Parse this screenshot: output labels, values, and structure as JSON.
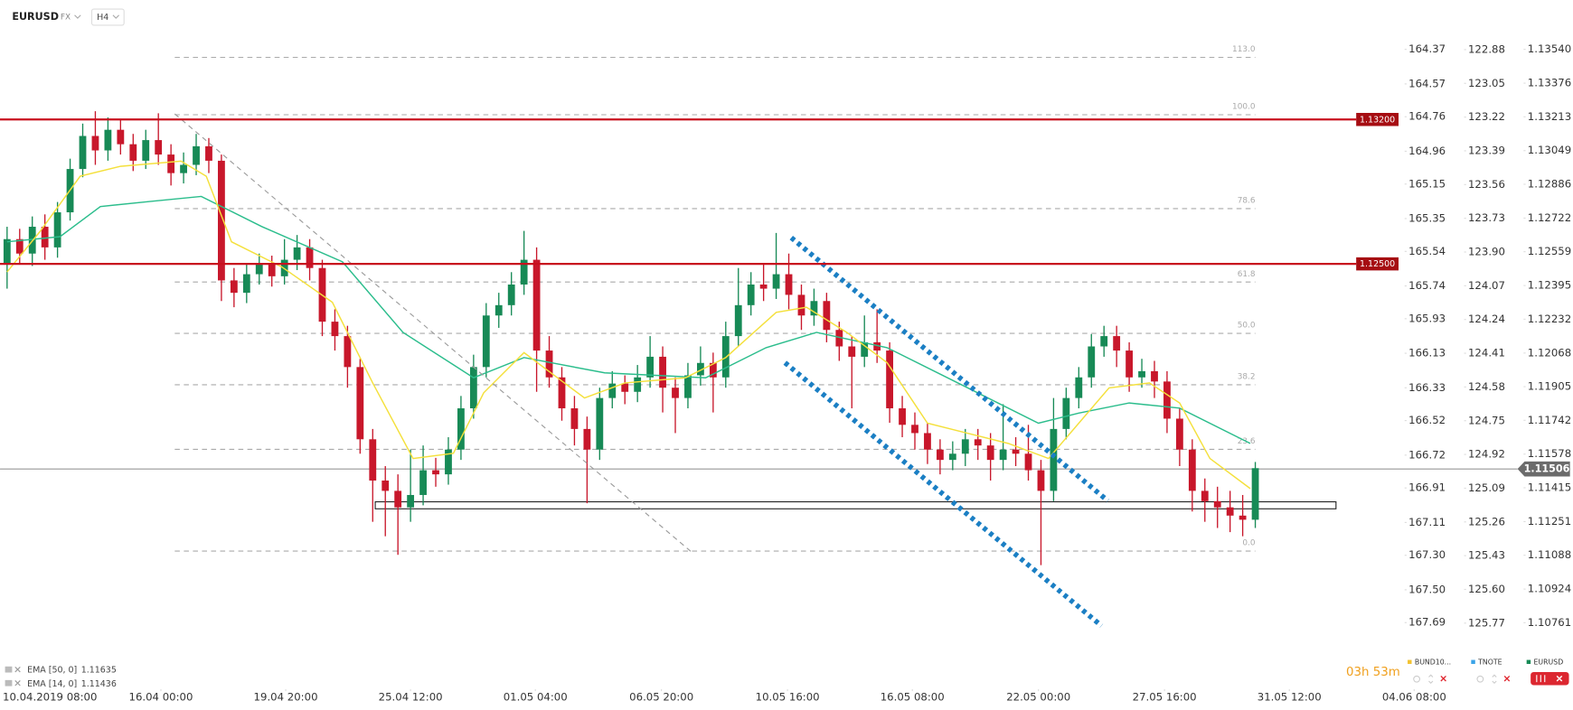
{
  "header": {
    "symbol": "EURUSD",
    "market": "FX",
    "timeframe": "H4"
  },
  "chart_data": {
    "type": "candlestick",
    "open": [
      1.125,
      1.1262,
      1.1255,
      1.1268,
      1.1258,
      1.1275,
      1.1296,
      1.1312,
      1.1305,
      1.1315,
      1.1308,
      1.13,
      1.131,
      1.1303,
      1.1294,
      1.1298,
      1.1307,
      1.13,
      1.1242,
      1.1236,
      1.1245,
      1.125,
      1.1244,
      1.1252,
      1.1258,
      1.1248,
      1.1222,
      1.1215,
      1.12,
      1.1165,
      1.1145,
      1.114,
      1.1132,
      1.1138,
      1.115,
      1.1148,
      1.116,
      1.118,
      1.12,
      1.1225,
      1.123,
      1.124,
      1.1252,
      1.1208,
      1.1195,
      1.118,
      1.117,
      1.116,
      1.1185,
      1.1192,
      1.1188,
      1.1195,
      1.1205,
      1.119,
      1.1185,
      1.1196,
      1.1202,
      1.1195,
      1.1215,
      1.123,
      1.124,
      1.1238,
      1.1245,
      1.1235,
      1.1225,
      1.1232,
      1.1218,
      1.121,
      1.1205,
      1.1212,
      1.1208,
      1.118,
      1.1172,
      1.1168,
      1.116,
      1.1155,
      1.1158,
      1.1165,
      1.1162,
      1.1155,
      1.116,
      1.1158,
      1.115,
      1.114,
      1.117,
      1.1185,
      1.1195,
      1.121,
      1.1215,
      1.1208,
      1.1195,
      1.1198,
      1.1193,
      1.1175,
      1.116,
      1.114,
      1.1135,
      1.1132,
      1.1128,
      1.1126
    ],
    "high": [
      1.1268,
      1.1267,
      1.1273,
      1.1274,
      1.128,
      1.1301,
      1.1318,
      1.1324,
      1.1321,
      1.132,
      1.1313,
      1.1315,
      1.1323,
      1.1308,
      1.1304,
      1.1313,
      1.1311,
      1.1303,
      1.1248,
      1.125,
      1.1255,
      1.1254,
      1.1262,
      1.1264,
      1.1262,
      1.1252,
      1.1228,
      1.122,
      1.1204,
      1.117,
      1.1152,
      1.1148,
      1.116,
      1.1162,
      1.1156,
      1.1166,
      1.1186,
      1.1206,
      1.1231,
      1.1236,
      1.1246,
      1.1266,
      1.1258,
      1.1215,
      1.12,
      1.1186,
      1.1176,
      1.119,
      1.1198,
      1.1196,
      1.1201,
      1.1215,
      1.121,
      1.1195,
      1.1202,
      1.121,
      1.1207,
      1.1222,
      1.1248,
      1.1246,
      1.125,
      1.1265,
      1.1255,
      1.124,
      1.1238,
      1.1236,
      1.1222,
      1.1215,
      1.1225,
      1.1228,
      1.1212,
      1.1186,
      1.1178,
      1.1173,
      1.1165,
      1.1164,
      1.117,
      1.117,
      1.1168,
      1.1182,
      1.1166,
      1.1172,
      1.1155,
      1.1185,
      1.119,
      1.12,
      1.1216,
      1.122,
      1.122,
      1.1212,
      1.1204,
      1.1203,
      1.1198,
      1.118,
      1.1165,
      1.1146,
      1.1142,
      1.114,
      1.1138,
      1.1154
    ],
    "low": [
      1.1238,
      1.125,
      1.1249,
      1.1252,
      1.1253,
      1.1271,
      1.1292,
      1.1298,
      1.13,
      1.1303,
      1.1295,
      1.1296,
      1.1298,
      1.1288,
      1.1289,
      1.1293,
      1.1294,
      1.1232,
      1.1229,
      1.1231,
      1.124,
      1.1239,
      1.124,
      1.1247,
      1.1242,
      1.1215,
      1.1208,
      1.119,
      1.1158,
      1.1125,
      1.1118,
      1.1109,
      1.1125,
      1.1133,
      1.1142,
      1.1143,
      1.1155,
      1.1175,
      1.1195,
      1.1219,
      1.1225,
      1.1235,
      1.1188,
      1.119,
      1.1174,
      1.1162,
      1.1134,
      1.1155,
      1.118,
      1.1182,
      1.1183,
      1.119,
      1.1178,
      1.1168,
      1.118,
      1.1191,
      1.1178,
      1.119,
      1.121,
      1.1225,
      1.1232,
      1.1233,
      1.1228,
      1.1218,
      1.122,
      1.1212,
      1.1203,
      1.118,
      1.12,
      1.1202,
      1.1173,
      1.1166,
      1.116,
      1.1153,
      1.1148,
      1.115,
      1.1152,
      1.1155,
      1.1145,
      1.115,
      1.1152,
      1.1145,
      1.1104,
      1.1135,
      1.1165,
      1.118,
      1.119,
      1.1205,
      1.12,
      1.1188,
      1.119,
      1.1185,
      1.1168,
      1.1152,
      1.113,
      1.1125,
      1.1122,
      1.112,
      1.1118,
      1.1122
    ],
    "close": [
      1.1262,
      1.1255,
      1.1268,
      1.1258,
      1.1275,
      1.1296,
      1.1312,
      1.1305,
      1.1315,
      1.1308,
      1.13,
      1.131,
      1.1303,
      1.1294,
      1.1298,
      1.1307,
      1.13,
      1.1242,
      1.1236,
      1.1245,
      1.125,
      1.1244,
      1.1252,
      1.1258,
      1.1248,
      1.1222,
      1.1215,
      1.12,
      1.1165,
      1.1145,
      1.114,
      1.1132,
      1.1138,
      1.115,
      1.1148,
      1.116,
      1.118,
      1.12,
      1.1225,
      1.123,
      1.124,
      1.1252,
      1.1208,
      1.1195,
      1.118,
      1.117,
      1.116,
      1.1185,
      1.1192,
      1.1188,
      1.1195,
      1.1205,
      1.119,
      1.1185,
      1.1196,
      1.1202,
      1.1195,
      1.1215,
      1.123,
      1.124,
      1.1238,
      1.1245,
      1.1235,
      1.1225,
      1.1232,
      1.1218,
      1.121,
      1.1205,
      1.1212,
      1.1208,
      1.118,
      1.1172,
      1.1168,
      1.116,
      1.1155,
      1.1158,
      1.1165,
      1.1162,
      1.1155,
      1.116,
      1.1158,
      1.115,
      1.114,
      1.117,
      1.1185,
      1.1195,
      1.121,
      1.1215,
      1.1208,
      1.1195,
      1.1198,
      1.1193,
      1.1175,
      1.116,
      1.114,
      1.1135,
      1.1132,
      1.1128,
      1.1126,
      1.1151
    ],
    "up_color": "#178a56",
    "down_color": "#c8172b",
    "xlim": [
      -0.56,
      114.6
    ],
    "xticks": [
      {
        "value": 3.4,
        "label": "10.04.2019  08:00"
      },
      {
        "value": 12.2,
        "label": "16.04  00:00"
      },
      {
        "value": 22.1,
        "label": "19.04  20:00"
      },
      {
        "value": 32,
        "label": "25.04  12:00"
      },
      {
        "value": 41.9,
        "label": "01.05  04:00"
      },
      {
        "value": 51.9,
        "label": "06.05  20:00"
      },
      {
        "value": 61.9,
        "label": "10.05  16:00"
      },
      {
        "value": 71.8,
        "label": "16.05  08:00"
      },
      {
        "value": 81.8,
        "label": "22.05  00:00"
      },
      {
        "value": 91.8,
        "label": "27.05  16:00"
      },
      {
        "value": 101.7,
        "label": "31.05  12:00"
      },
      {
        "value": 111.6,
        "label": "04.06  08:00"
      }
    ],
    "ylim": [
      1.10605,
      1.13779
    ],
    "yticks": [
      {
        "value": 1.1354,
        "label": "1.13540"
      },
      1.13376,
      1.13213,
      1.13049,
      1.12886,
      1.12722,
      1.12559,
      1.12395,
      1.12232,
      1.12068,
      1.11905,
      1.11742,
      1.11578,
      1.11415,
      1.11251,
      1.11088,
      1.10924,
      1.10761
    ],
    "y2lim": [
      164.084,
      167.877
    ],
    "y2_inverted": true,
    "y2ticks": [
      164.37,
      164.57,
      164.76,
      164.96,
      165.15,
      165.35,
      165.54,
      165.74,
      165.93,
      166.13,
      166.33,
      166.52,
      166.72,
      166.91,
      167.11,
      {
        "value": 167.3,
        "label": "167.30"
      },
      {
        "value": 167.5,
        "label": "167.50"
      },
      167.69
    ],
    "y3lim": [
      122.63,
      125.93
    ],
    "y3_inverted": true,
    "y3ticks": [
      122.88,
      123.05,
      123.22,
      123.39,
      123.56,
      123.73,
      {
        "value": 123.9,
        "label": "123.90"
      },
      124.07,
      124.24,
      124.41,
      124.58,
      124.75,
      124.92,
      125.09,
      125.26,
      125.43,
      {
        "value": 125.6,
        "label": "125.60"
      },
      125.77
    ],
    "indicators": [
      {
        "name": "EMA [50, 0]",
        "last": 1.11635,
        "color": "#2bbd8c",
        "x": [
          0,
          4.2,
          7.4,
          11.4,
          15.4,
          20.2,
          26.6,
          31.4,
          37,
          41,
          47.4,
          55.4,
          60.2,
          64.2,
          69.8,
          76.2,
          81.8,
          85,
          89,
          93,
          98.6
        ],
        "values": [
          1.12607,
          1.12632,
          1.12778,
          1.12803,
          1.12827,
          1.12681,
          1.1251,
          1.12168,
          1.11948,
          1.12046,
          1.11972,
          1.11948,
          1.12094,
          1.12168,
          1.12094,
          1.11899,
          1.11728,
          1.11777,
          1.11826,
          1.11801,
          1.1163
        ]
      },
      {
        "name": "EMA [14, 0]",
        "last": 1.11436,
        "color": "#f4e03c",
        "x": [
          0,
          2.6,
          5.8,
          9,
          13.8,
          15.8,
          17.8,
          21.8,
          25.8,
          29,
          32.2,
          35.4,
          37.8,
          41,
          44.2,
          45.8,
          49,
          53.8,
          57,
          61,
          63.4,
          66.6,
          69.8,
          73,
          76.2,
          79.4,
          82.6,
          85,
          87.4,
          90.6,
          93,
          95.4,
          98.6
        ],
        "values": [
          1.12461,
          1.12656,
          1.12925,
          1.12973,
          1.12998,
          1.12925,
          1.12607,
          1.12485,
          1.12314,
          1.11923,
          1.11557,
          1.11582,
          1.11875,
          1.1207,
          1.11923,
          1.1185,
          1.11923,
          1.11948,
          1.12046,
          1.12265,
          1.1229,
          1.12168,
          1.12021,
          1.11728,
          1.11679,
          1.1163,
          1.11557,
          1.11728,
          1.11899,
          1.11923,
          1.11826,
          1.11557,
          1.11411
        ]
      }
    ],
    "levels": [
      {
        "value": 1.132,
        "label": "1.13200",
        "color": "#c8101e"
      },
      {
        "value": 1.125,
        "label": "1.12500",
        "color": "#c8101e"
      }
    ],
    "last_price": 1.11506,
    "fibonacci": {
      "from": 13.3,
      "to": 99,
      "levels": [
        {
          "label": "113.0",
          "price": 1.13501
        },
        {
          "label": "100.0",
          "price": 1.13223
        },
        {
          "label": "78.6",
          "price": 1.12768
        },
        {
          "label": "61.8",
          "price": 1.12412
        },
        {
          "label": "50.0",
          "price": 1.12163
        },
        {
          "label": "38.2",
          "price": 1.11914
        },
        {
          "label": "23.6",
          "price": 1.11601
        },
        {
          "label": "0.0",
          "price": 1.11108
        }
      ]
    },
    "trend_lines": [
      {
        "x": [
          13.3,
          54.3
        ],
        "y": [
          1.13227,
          1.11103
        ],
        "color": "#9a9a9a",
        "style": "dashed"
      },
      {
        "x": [
          62.2,
          87.3
        ],
        "y": [
          1.12627,
          1.11352
        ],
        "color": "#1b7fc4",
        "style": "dotted"
      },
      {
        "x": [
          61.7,
          86.8
        ],
        "y": [
          1.12021,
          1.10746
        ],
        "color": "#1b7fc4",
        "style": "dotted"
      }
    ],
    "zone": {
      "x": [
        29.2,
        105.4
      ],
      "y": [
        1.11313,
        1.11347
      ]
    },
    "countdown": "03h 53m",
    "legend": [
      {
        "name": "BUND10...",
        "color": "#f2c230"
      },
      {
        "name": "TNOTE",
        "color": "#3aa3e8"
      },
      {
        "name": "EURUSD",
        "color": "#178a56"
      }
    ]
  }
}
